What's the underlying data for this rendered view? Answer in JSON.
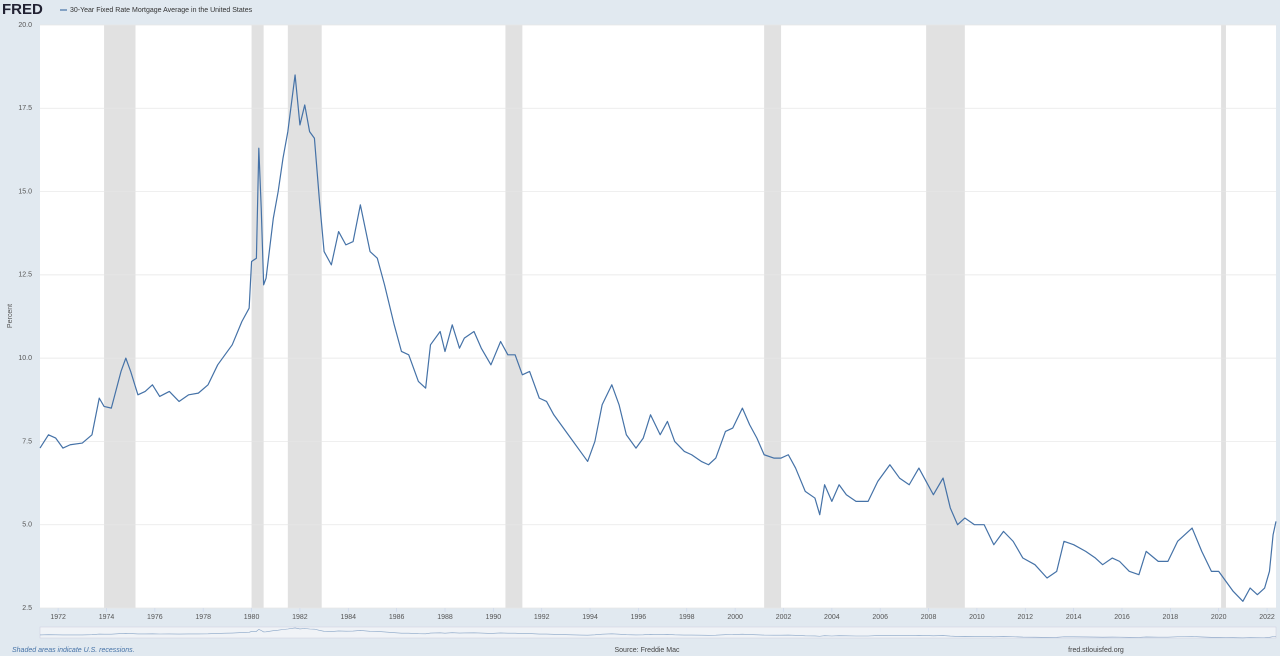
{
  "chart_data": {
    "type": "line",
    "logo": "FRED",
    "y_label": "Percent",
    "note": "Shaded areas indicate U.S. recessions.",
    "source": "Source: Freddie Mac",
    "site": "fred.stlouisfed.org",
    "xlim": [
      1971.25,
      2022.37
    ],
    "xticks": [
      1972,
      1974,
      1976,
      1978,
      1980,
      1982,
      1984,
      1986,
      1988,
      1990,
      1992,
      1994,
      1996,
      1998,
      2000,
      2002,
      2004,
      2006,
      2008,
      2010,
      2012,
      2014,
      2016,
      2018,
      2020,
      2022
    ],
    "ylim": [
      2.5,
      20
    ],
    "yticks": [
      2.5,
      {
        "value": 5,
        "label": "5.0"
      },
      7.5,
      {
        "value": 10,
        "label": "10.0"
      },
      12.5,
      {
        "value": 15,
        "label": "15.0"
      },
      17.5,
      {
        "value": 20,
        "label": "20.0"
      }
    ],
    "grid": true,
    "recession_color": "#e1e1e1",
    "recessions": [
      [
        1973.9,
        1975.2
      ],
      [
        1980.0,
        1980.5
      ],
      [
        1981.5,
        1982.9
      ],
      [
        1990.5,
        1991.2
      ],
      [
        2001.2,
        2001.9
      ],
      [
        2007.9,
        2009.5
      ],
      [
        2020.1,
        2020.3
      ]
    ],
    "x": [
      1971.25,
      1971.6,
      1971.9,
      1972.2,
      1972.5,
      1973.0,
      1973.4,
      1973.7,
      1973.9,
      1974.2,
      1974.6,
      1974.8,
      1975.0,
      1975.3,
      1975.6,
      1975.9,
      1976.2,
      1976.6,
      1977.0,
      1977.4,
      1977.8,
      1978.2,
      1978.6,
      1978.9,
      1979.2,
      1979.6,
      1979.9,
      1980.0,
      1980.2,
      1980.3,
      1980.4,
      1980.5,
      1980.6,
      1980.9,
      1981.1,
      1981.3,
      1981.5,
      1981.8,
      1982.0,
      1982.2,
      1982.4,
      1982.6,
      1982.8,
      1983.0,
      1983.3,
      1983.6,
      1983.9,
      1984.2,
      1984.5,
      1984.9,
      1985.2,
      1985.5,
      1985.9,
      1986.2,
      1986.5,
      1986.9,
      1987.2,
      1987.4,
      1987.8,
      1988.0,
      1988.3,
      1988.6,
      1988.8,
      1989.2,
      1989.5,
      1989.9,
      1990.3,
      1990.6,
      1990.9,
      1991.2,
      1991.5,
      1991.9,
      1992.2,
      1992.5,
      1992.8,
      1993.2,
      1993.6,
      1993.9,
      1994.2,
      1994.5,
      1994.9,
      1995.2,
      1995.5,
      1995.9,
      1996.2,
      1996.5,
      1996.9,
      1997.2,
      1997.5,
      1997.9,
      1998.2,
      1998.6,
      1998.9,
      1999.2,
      1999.6,
      1999.9,
      2000.3,
      2000.6,
      2000.9,
      2001.2,
      2001.6,
      2001.9,
      2002.2,
      2002.5,
      2002.9,
      2003.3,
      2003.5,
      2003.7,
      2004.0,
      2004.3,
      2004.6,
      2005.0,
      2005.5,
      2005.9,
      2006.4,
      2006.8,
      2007.2,
      2007.6,
      2007.9,
      2008.2,
      2008.6,
      2008.9,
      2009.2,
      2009.5,
      2009.9,
      2010.3,
      2010.7,
      2011.1,
      2011.5,
      2011.9,
      2012.4,
      2012.9,
      2013.3,
      2013.6,
      2014.0,
      2014.5,
      2014.9,
      2015.2,
      2015.6,
      2015.9,
      2016.3,
      2016.7,
      2017.0,
      2017.5,
      2017.9,
      2018.3,
      2018.9,
      2019.3,
      2019.7,
      2020.0,
      2020.3,
      2020.6,
      2021.0,
      2021.3,
      2021.6,
      2021.9,
      2022.1,
      2022.25,
      2022.37
    ],
    "series": [
      {
        "name": "30-Year Fixed Rate Mortgage Average in the United States",
        "color": "#4572a7",
        "values": [
          7.3,
          7.7,
          7.6,
          7.3,
          7.4,
          7.45,
          7.7,
          8.8,
          8.55,
          8.5,
          9.6,
          10.0,
          9.6,
          8.9,
          9.0,
          9.2,
          8.85,
          9.0,
          8.7,
          8.9,
          8.95,
          9.2,
          9.8,
          10.1,
          10.4,
          11.1,
          11.5,
          12.9,
          13.0,
          16.3,
          14.5,
          12.2,
          12.4,
          14.2,
          15.0,
          16.0,
          16.8,
          18.5,
          17.0,
          17.6,
          16.8,
          16.6,
          14.8,
          13.2,
          12.8,
          13.8,
          13.4,
          13.5,
          14.6,
          13.2,
          13.0,
          12.2,
          11.0,
          10.2,
          10.1,
          9.3,
          9.1,
          10.4,
          10.8,
          10.2,
          11.0,
          10.3,
          10.6,
          10.8,
          10.3,
          9.8,
          10.5,
          10.1,
          10.1,
          9.5,
          9.6,
          8.8,
          8.7,
          8.3,
          8.0,
          7.6,
          7.2,
          6.9,
          7.5,
          8.6,
          9.2,
          8.6,
          7.7,
          7.3,
          7.6,
          8.3,
          7.7,
          8.1,
          7.5,
          7.2,
          7.1,
          6.9,
          6.8,
          7.0,
          7.8,
          7.9,
          8.5,
          8.0,
          7.6,
          7.1,
          7.0,
          7.0,
          7.1,
          6.7,
          6.0,
          5.8,
          5.3,
          6.2,
          5.7,
          6.2,
          5.9,
          5.7,
          5.7,
          6.3,
          6.8,
          6.4,
          6.2,
          6.7,
          6.3,
          5.9,
          6.4,
          5.5,
          5.0,
          5.2,
          5.0,
          5.0,
          4.4,
          4.8,
          4.5,
          4.0,
          3.8,
          3.4,
          3.6,
          4.5,
          4.4,
          4.2,
          4.0,
          3.8,
          4.0,
          3.9,
          3.6,
          3.5,
          4.2,
          3.9,
          3.9,
          4.5,
          4.9,
          4.2,
          3.6,
          3.6,
          3.3,
          3.0,
          2.7,
          3.1,
          2.9,
          3.1,
          3.6,
          4.7,
          5.1
        ]
      }
    ]
  }
}
